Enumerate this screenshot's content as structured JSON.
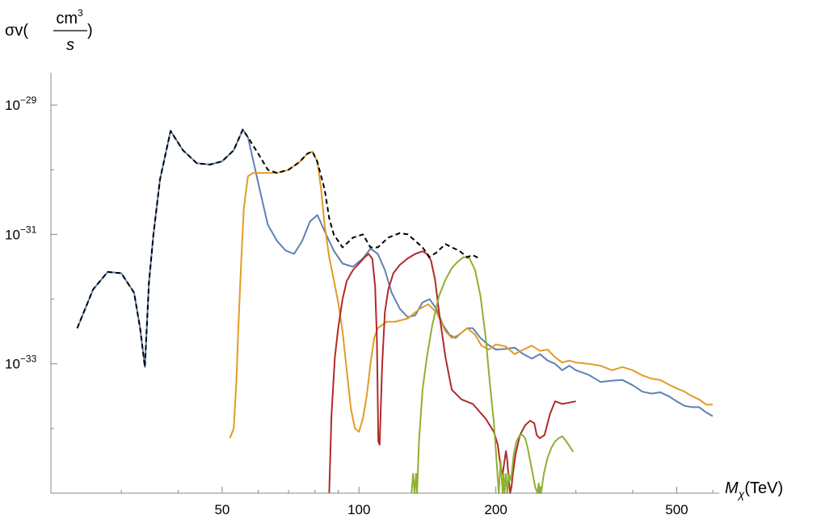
{
  "chart_data": {
    "type": "line",
    "title": "",
    "xlabel": "M_χ(TeV)",
    "xlabel_parts": {
      "main": "M",
      "sub": "χ",
      "unit": "(TeV)"
    },
    "ylabel": "σv(cm³/s)",
    "ylabel_parts": {
      "sigma": "σv(",
      "num": "cm",
      "num_exp": "3",
      "den": "s",
      "close": ")"
    },
    "x_scale": "log",
    "y_scale": "log",
    "xlim": [
      21,
      620
    ],
    "ylim_log10": [
      -35.0,
      -28.0
    ],
    "x_ticks": [
      50,
      100,
      200,
      500
    ],
    "x_tick_labels": [
      "50",
      "100",
      "200",
      "500"
    ],
    "y_ticks_log10": [
      -33,
      -31,
      -29
    ],
    "y_tick_labels": [
      {
        "base": "10",
        "exp": "−33"
      },
      {
        "base": "10",
        "exp": "−31"
      },
      {
        "base": "10",
        "exp": "−29"
      }
    ],
    "grid": false,
    "legend": "none",
    "series": [
      {
        "color": "#5e81b5",
        "x": [
          24,
          26,
          28,
          30,
          32,
          33,
          33.8,
          34.5,
          35.3,
          36.5,
          38.5,
          41,
          44,
          47,
          50,
          53,
          55.5,
          57,
          60,
          63,
          66,
          69,
          72,
          75,
          78,
          81,
          84,
          88,
          92,
          97,
          102,
          106,
          110,
          114,
          118,
          123,
          128,
          133,
          138,
          143,
          148,
          153,
          158,
          163,
          168,
          173,
          178,
          185,
          192,
          200,
          210,
          220,
          230,
          240,
          250,
          260,
          270,
          280,
          290,
          300,
          320,
          340,
          360,
          380,
          400,
          420,
          440,
          460,
          480,
          500,
          520,
          540,
          560,
          580,
          600
        ],
        "y": [
          -32.45,
          -31.85,
          -31.58,
          -31.6,
          -31.9,
          -32.45,
          -33.05,
          -31.75,
          -31.0,
          -30.15,
          -29.4,
          -29.7,
          -29.9,
          -29.92,
          -29.87,
          -29.7,
          -29.38,
          -29.5,
          -30.2,
          -30.85,
          -31.1,
          -31.25,
          -31.3,
          -31.1,
          -30.8,
          -30.7,
          -30.95,
          -31.25,
          -31.45,
          -31.5,
          -31.37,
          -31.22,
          -31.3,
          -31.55,
          -31.9,
          -32.15,
          -32.28,
          -32.25,
          -32.05,
          -32.0,
          -32.15,
          -32.4,
          -32.55,
          -32.6,
          -32.52,
          -32.45,
          -32.45,
          -32.6,
          -32.7,
          -32.78,
          -32.77,
          -32.75,
          -32.85,
          -32.92,
          -32.85,
          -32.95,
          -33.0,
          -33.1,
          -33.03,
          -33.1,
          -33.17,
          -33.28,
          -33.26,
          -33.25,
          -33.33,
          -33.43,
          -33.46,
          -33.44,
          -33.5,
          -33.58,
          -33.65,
          -33.67,
          -33.67,
          -33.75,
          -33.81
        ]
      },
      {
        "color": "#e19c24",
        "x": [
          52,
          53,
          53.7,
          54.3,
          55,
          55.8,
          57,
          58.5,
          60,
          63,
          66,
          70,
          74,
          77,
          79,
          81,
          82.5,
          84,
          86,
          88,
          90,
          92,
          94,
          96,
          98,
          100,
          102,
          104,
          106,
          108,
          110,
          115,
          120,
          128,
          136,
          142,
          148,
          155,
          160,
          166,
          173,
          180,
          186,
          193,
          200,
          210,
          220,
          230,
          240,
          250,
          260,
          270,
          280,
          290,
          300,
          320,
          340,
          360,
          380,
          400,
          420,
          440,
          460,
          480,
          500,
          520,
          540,
          560,
          580,
          600
        ],
        "y": [
          -34.15,
          -34.0,
          -33.3,
          -32.4,
          -31.5,
          -30.6,
          -30.1,
          -30.05,
          -30.05,
          -30.05,
          -30.05,
          -30.0,
          -29.88,
          -29.75,
          -29.72,
          -29.88,
          -30.3,
          -30.85,
          -31.35,
          -31.7,
          -32.05,
          -32.5,
          -33.1,
          -33.7,
          -34.0,
          -34.05,
          -33.85,
          -33.5,
          -33.0,
          -32.6,
          -32.45,
          -32.35,
          -32.35,
          -32.3,
          -32.15,
          -32.08,
          -32.2,
          -32.5,
          -32.6,
          -32.55,
          -32.45,
          -32.55,
          -32.72,
          -32.78,
          -32.7,
          -32.73,
          -32.85,
          -32.78,
          -32.72,
          -32.8,
          -32.78,
          -32.9,
          -32.98,
          -32.95,
          -32.98,
          -33.0,
          -33.03,
          -33.1,
          -33.05,
          -33.1,
          -33.18,
          -33.23,
          -33.25,
          -33.32,
          -33.38,
          -33.43,
          -33.5,
          -33.55,
          -33.63,
          -33.63
        ]
      },
      {
        "color": "#b12a2a",
        "x": [
          86,
          87,
          88.5,
          90,
          92,
          94,
          97,
          100,
          103,
          105,
          107,
          108.5,
          109.5,
          110.3,
          111,
          112.5,
          114,
          116,
          119,
          123,
          128,
          133,
          138,
          141,
          144,
          147,
          150,
          155,
          160,
          168,
          178,
          190,
          198,
          202,
          205,
          207,
          209,
          210.5,
          212,
          213.5,
          215,
          216.5,
          218,
          221,
          226,
          232,
          238,
          243,
          246,
          250,
          256,
          263,
          270,
          280,
          290,
          300
        ],
        "y": [
          -35.0,
          -33.8,
          -32.9,
          -32.45,
          -32.0,
          -31.72,
          -31.55,
          -31.45,
          -31.35,
          -31.3,
          -31.38,
          -31.8,
          -32.6,
          -34.2,
          -34.25,
          -33.0,
          -32.2,
          -31.85,
          -31.6,
          -31.47,
          -31.37,
          -31.3,
          -31.26,
          -31.3,
          -31.4,
          -31.7,
          -32.2,
          -32.9,
          -33.4,
          -33.55,
          -33.62,
          -33.85,
          -34.05,
          -34.25,
          -34.6,
          -34.7,
          -34.5,
          -34.35,
          -34.5,
          -34.8,
          -35.0,
          -34.9,
          -34.7,
          -34.4,
          -34.1,
          -33.95,
          -33.88,
          -33.92,
          -34.1,
          -34.15,
          -34.1,
          -33.78,
          -33.58,
          -33.62,
          -33.6,
          -33.58
        ]
      },
      {
        "color": "#8fb032",
        "x": [
          130.5,
          131.5,
          132.5,
          133.5,
          134.2,
          135.5,
          138,
          141,
          145,
          150,
          155,
          160,
          165,
          170,
          175,
          180,
          185,
          190,
          194,
          198,
          201,
          203,
          205,
          207,
          208,
          209,
          210.5,
          212,
          213.5,
          216,
          219,
          222,
          226,
          229,
          232,
          235,
          238,
          241,
          244,
          247,
          248.5,
          249.5,
          250.5,
          251.5,
          255,
          260,
          265,
          270,
          275,
          280,
          286,
          292,
          296
        ],
        "y": [
          -35.0,
          -34.7,
          -35.0,
          -34.7,
          -35.0,
          -34.2,
          -33.4,
          -32.9,
          -32.4,
          -31.95,
          -31.7,
          -31.52,
          -31.42,
          -31.35,
          -31.37,
          -31.55,
          -31.95,
          -32.6,
          -33.3,
          -33.9,
          -34.55,
          -35.0,
          -34.5,
          -35.0,
          -34.7,
          -35.0,
          -34.7,
          -35.0,
          -34.7,
          -34.8,
          -34.4,
          -34.2,
          -34.1,
          -34.1,
          -34.15,
          -34.3,
          -34.5,
          -34.7,
          -34.9,
          -35.0,
          -34.85,
          -35.0,
          -34.9,
          -35.0,
          -34.7,
          -34.45,
          -34.3,
          -34.2,
          -34.15,
          -34.12,
          -34.2,
          -34.3,
          -34.36
        ]
      },
      {
        "color": "#000000",
        "dashed": true,
        "x": [
          24,
          26,
          28,
          30,
          32,
          33,
          33.8,
          34.5,
          35.3,
          36.5,
          38.5,
          41,
          44,
          47,
          50,
          53,
          55.5,
          57,
          60,
          63,
          66,
          70,
          74,
          77,
          79,
          81,
          84,
          86,
          88,
          92,
          97,
          102,
          106,
          110,
          116,
          123,
          128,
          133,
          138,
          143,
          148,
          155,
          160,
          166,
          173,
          178,
          185
        ],
        "y": [
          -32.45,
          -31.85,
          -31.58,
          -31.6,
          -31.9,
          -32.45,
          -33.05,
          -31.75,
          -31.0,
          -30.15,
          -29.4,
          -29.7,
          -29.9,
          -29.92,
          -29.87,
          -29.7,
          -29.38,
          -29.5,
          -29.75,
          -30.0,
          -30.05,
          -30.0,
          -29.88,
          -29.75,
          -29.72,
          -29.88,
          -30.3,
          -30.75,
          -31.0,
          -31.2,
          -31.05,
          -31.0,
          -31.2,
          -31.2,
          -31.05,
          -30.98,
          -31.0,
          -31.1,
          -31.2,
          -31.35,
          -31.28,
          -31.15,
          -31.2,
          -31.25,
          -31.35,
          -31.32,
          -31.38
        ]
      }
    ]
  }
}
